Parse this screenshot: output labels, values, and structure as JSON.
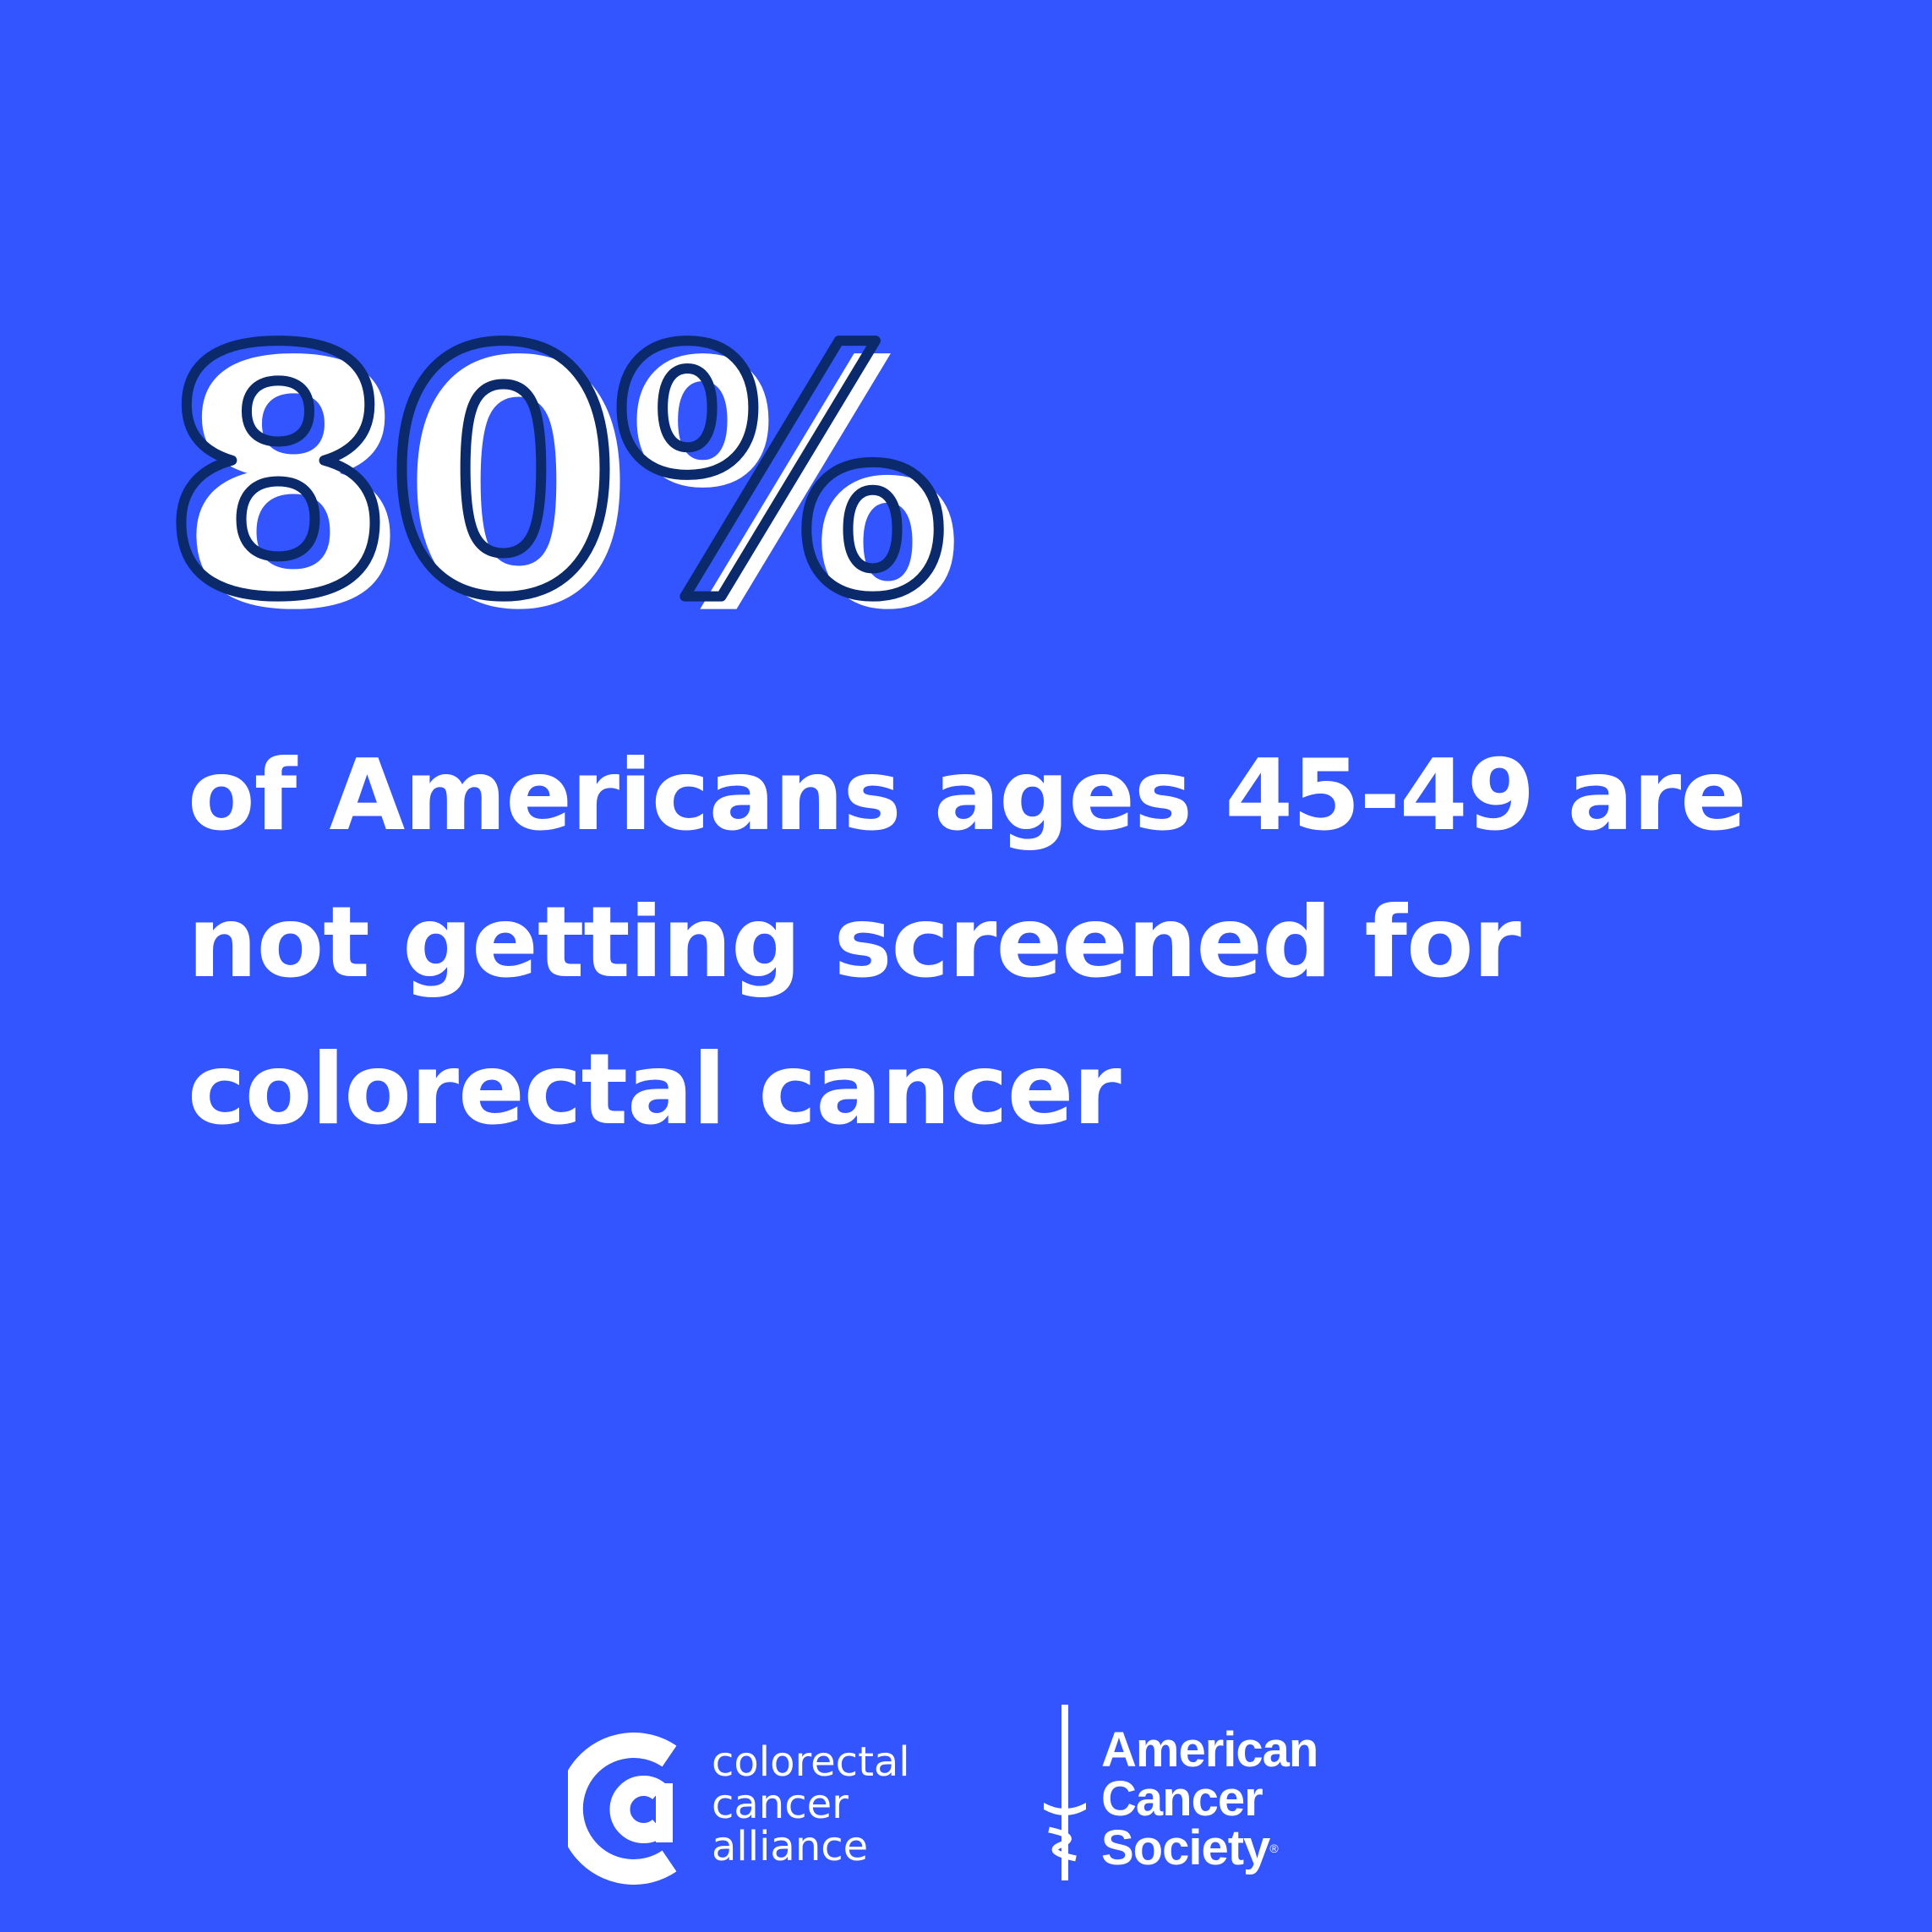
{
  "stat": {
    "value": "80%"
  },
  "headline": {
    "line1": "of Americans ages 45-49 are",
    "line2": "not getting screened for",
    "line3": "colorectal cancer"
  },
  "logos": {
    "cca": {
      "line1": "colorectal",
      "line2": "cancer",
      "line3": "alliance"
    },
    "acs": {
      "line1": "American",
      "line2": "Cancer",
      "line3": "Society",
      "registered": "®"
    }
  },
  "colors": {
    "background": "#3355ff",
    "text": "#ffffff",
    "outline": "#0b2a6b"
  }
}
